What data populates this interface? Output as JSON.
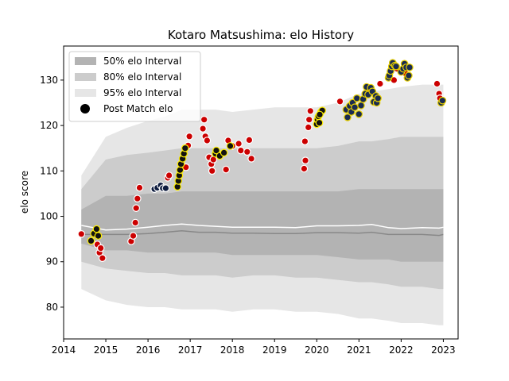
{
  "chart_data": {
    "type": "scatter",
    "title": "Kotaro Matsushima: elo History",
    "xlabel": "",
    "ylabel": "elo score",
    "xlim": [
      2014.0,
      2023.35
    ],
    "ylim": [
      73.0,
      137.5
    ],
    "xticks": [
      2014,
      2015,
      2016,
      2017,
      2018,
      2019,
      2020,
      2021,
      2022,
      2023
    ],
    "xtick_labels": [
      "2014",
      "2015",
      "2016",
      "2017",
      "2018",
      "2019",
      "2020",
      "2021",
      "2022",
      "2023"
    ],
    "yticks": [
      80,
      90,
      100,
      110,
      120,
      130
    ],
    "ytick_labels": [
      "80",
      "90",
      "100",
      "110",
      "120",
      "130"
    ],
    "grid": false,
    "legend": {
      "placement": "top-left",
      "entries": [
        "50% elo Interval",
        "80% elo Interval",
        "95% elo Interval",
        "Post Match elo"
      ]
    },
    "colors": {
      "band50": "#b3b3b3",
      "band80": "#cccccc",
      "band95": "#e6e6e6",
      "median_line": "#888888",
      "mean_line": "#ffffff",
      "loss": "#cc0000",
      "win": "#111111",
      "win_edge": "#ffee00",
      "draw": "#0d1b3e",
      "draw_edge": "#ffffff",
      "top_tier": "#1a2b50",
      "top_tier_edge": "#e8d000"
    },
    "bands": {
      "x": [
        2014.42,
        2015.0,
        2015.5,
        2016.0,
        2016.4,
        2016.8,
        2017.2,
        2017.6,
        2018.0,
        2018.5,
        2019.0,
        2019.5,
        2020.0,
        2020.5,
        2021.0,
        2021.3,
        2021.7,
        2022.0,
        2022.5,
        2022.9,
        2023.0
      ],
      "p2_5": [
        84.0,
        81.5,
        80.5,
        80.0,
        80.0,
        79.5,
        79.5,
        79.5,
        79.0,
        79.5,
        79.5,
        79.0,
        79.0,
        78.5,
        77.5,
        77.5,
        77.0,
        76.5,
        76.5,
        76.0,
        76.0
      ],
      "p10": [
        90.0,
        88.5,
        88.0,
        87.5,
        87.5,
        87.0,
        87.0,
        87.0,
        86.5,
        87.0,
        87.0,
        86.5,
        86.5,
        86.0,
        85.5,
        85.5,
        85.0,
        84.5,
        84.5,
        84.0,
        84.0
      ],
      "p25": [
        94.0,
        92.5,
        92.5,
        92.0,
        92.0,
        92.0,
        92.0,
        92.0,
        91.5,
        91.5,
        91.5,
        91.5,
        91.5,
        91.0,
        90.5,
        90.5,
        90.5,
        90.0,
        90.0,
        90.0,
        90.0
      ],
      "median": [
        96.0,
        96.0,
        96.0,
        96.2,
        96.5,
        96.8,
        96.5,
        96.5,
        96.3,
        96.3,
        96.2,
        96.2,
        96.4,
        96.4,
        96.3,
        96.5,
        96.0,
        96.0,
        96.0,
        95.8,
        96.0
      ],
      "mean": [
        98.0,
        97.0,
        97.2,
        97.6,
        98.0,
        98.3,
        98.0,
        97.8,
        97.6,
        97.6,
        97.6,
        97.5,
        97.9,
        97.9,
        98.0,
        98.2,
        97.5,
        97.3,
        97.5,
        97.4,
        97.6
      ],
      "p75": [
        101.5,
        104.5,
        104.5,
        105.0,
        105.0,
        105.5,
        105.5,
        105.5,
        105.5,
        105.5,
        105.5,
        105.5,
        105.5,
        105.5,
        106.0,
        106.0,
        106.0,
        106.0,
        106.0,
        106.0,
        106.0
      ],
      "p90": [
        106.0,
        112.5,
        113.5,
        114.0,
        114.5,
        115.0,
        115.0,
        115.0,
        115.0,
        115.0,
        115.0,
        115.0,
        115.0,
        115.5,
        116.5,
        116.5,
        117.0,
        117.5,
        117.5,
        117.5,
        117.5
      ],
      "p97_5": [
        109.0,
        117.5,
        119.5,
        121.0,
        122.0,
        123.5,
        123.5,
        123.5,
        123.0,
        123.5,
        124.0,
        124.0,
        124.0,
        125.0,
        127.0,
        127.5,
        128.0,
        128.5,
        129.0,
        129.0,
        129.0
      ]
    },
    "points_loss": [
      [
        2014.42,
        96.1
      ],
      [
        2014.8,
        93.8
      ],
      [
        2014.85,
        92.0
      ],
      [
        2014.88,
        93.0
      ],
      [
        2014.92,
        90.8
      ],
      [
        2015.6,
        94.5
      ],
      [
        2015.65,
        95.7
      ],
      [
        2015.7,
        98.6
      ],
      [
        2015.72,
        101.8
      ],
      [
        2015.75,
        103.9
      ],
      [
        2015.8,
        106.3
      ],
      [
        2016.47,
        108.5
      ],
      [
        2016.5,
        109.0
      ],
      [
        2016.9,
        110.8
      ],
      [
        2016.95,
        115.6
      ],
      [
        2016.98,
        117.6
      ],
      [
        2017.3,
        119.3
      ],
      [
        2017.33,
        121.3
      ],
      [
        2017.36,
        117.6
      ],
      [
        2017.4,
        116.7
      ],
      [
        2017.45,
        113.0
      ],
      [
        2017.5,
        111.5
      ],
      [
        2017.52,
        110.0
      ],
      [
        2017.55,
        112.5
      ],
      [
        2017.85,
        110.3
      ],
      [
        2017.9,
        116.7
      ],
      [
        2018.0,
        115.5
      ],
      [
        2018.15,
        116.0
      ],
      [
        2018.2,
        114.5
      ],
      [
        2018.35,
        114.2
      ],
      [
        2018.4,
        116.8
      ],
      [
        2018.45,
        112.7
      ],
      [
        2019.7,
        110.5
      ],
      [
        2019.72,
        116.5
      ],
      [
        2019.73,
        112.3
      ],
      [
        2019.8,
        119.6
      ],
      [
        2019.82,
        121.3
      ],
      [
        2019.85,
        123.2
      ],
      [
        2020.55,
        125.3
      ],
      [
        2021.25,
        128.0
      ],
      [
        2021.5,
        129.2
      ],
      [
        2021.83,
        130.0
      ],
      [
        2021.9,
        132.5
      ],
      [
        2022.1,
        131.5
      ],
      [
        2022.85,
        129.2
      ],
      [
        2022.9,
        127.0
      ],
      [
        2022.92,
        126.0
      ]
    ],
    "points_win": [
      [
        2014.65,
        94.6
      ],
      [
        2014.72,
        96.2
      ],
      [
        2014.78,
        97.2
      ],
      [
        2014.82,
        95.7
      ],
      [
        2016.7,
        106.5
      ],
      [
        2016.72,
        107.8
      ],
      [
        2016.74,
        109.0
      ],
      [
        2016.76,
        110.2
      ],
      [
        2016.78,
        111.5
      ],
      [
        2016.82,
        112.7
      ],
      [
        2016.85,
        113.8
      ],
      [
        2016.88,
        115.0
      ],
      [
        2017.6,
        113.8
      ],
      [
        2017.62,
        114.5
      ],
      [
        2017.7,
        113.3
      ],
      [
        2017.8,
        114.0
      ],
      [
        2017.95,
        115.5
      ],
      [
        2020.0,
        120.3
      ],
      [
        2020.02,
        121.3
      ],
      [
        2020.04,
        122.0
      ],
      [
        2020.06,
        120.6
      ],
      [
        2020.1,
        123.0
      ],
      [
        2020.13,
        123.3
      ],
      [
        2020.07,
        122.4
      ]
    ],
    "points_draw": [
      [
        2016.15,
        106.0
      ],
      [
        2016.22,
        106.3
      ],
      [
        2016.3,
        106.8
      ],
      [
        2016.35,
        106.2
      ],
      [
        2016.42,
        106.2
      ]
    ],
    "points_top": [
      [
        2020.7,
        123.5
      ],
      [
        2020.73,
        121.8
      ],
      [
        2020.78,
        124.3
      ],
      [
        2020.82,
        123.0
      ],
      [
        2020.85,
        125.0
      ],
      [
        2020.9,
        124.0
      ],
      [
        2020.95,
        126.0
      ],
      [
        2021.0,
        122.5
      ],
      [
        2021.05,
        124.4
      ],
      [
        2021.1,
        125.8
      ],
      [
        2021.15,
        127.0
      ],
      [
        2021.18,
        128.5
      ],
      [
        2021.22,
        126.8
      ],
      [
        2021.28,
        128.3
      ],
      [
        2021.32,
        127.5
      ],
      [
        2021.35,
        125.2
      ],
      [
        2021.4,
        126.5
      ],
      [
        2021.42,
        125.0
      ],
      [
        2021.45,
        126.0
      ],
      [
        2021.7,
        130.5
      ],
      [
        2021.72,
        131.0
      ],
      [
        2021.75,
        132.0
      ],
      [
        2021.78,
        133.0
      ],
      [
        2021.8,
        133.8
      ],
      [
        2021.85,
        133.2
      ],
      [
        2021.88,
        133.0
      ],
      [
        2022.0,
        131.8
      ],
      [
        2022.05,
        132.5
      ],
      [
        2022.08,
        133.6
      ],
      [
        2022.12,
        132.8
      ],
      [
        2022.15,
        130.5
      ],
      [
        2022.18,
        131.0
      ],
      [
        2022.2,
        132.8
      ],
      [
        2022.95,
        125.0
      ],
      [
        2022.98,
        125.5
      ]
    ]
  }
}
